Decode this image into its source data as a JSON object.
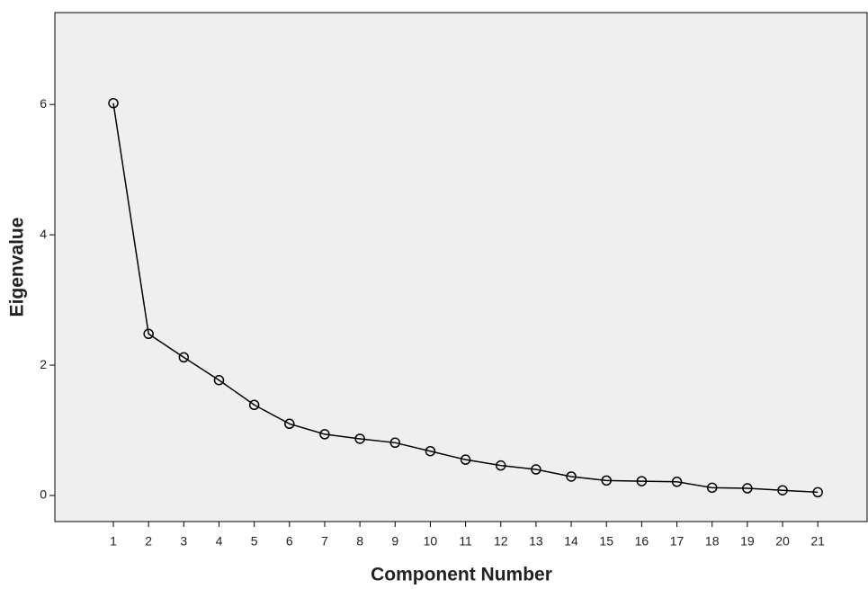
{
  "chart_data": {
    "type": "line",
    "x_label": "Component Number",
    "y_label": "Eigenvalue",
    "x": [
      1,
      2,
      3,
      4,
      5,
      6,
      7,
      8,
      9,
      10,
      11,
      12,
      13,
      14,
      15,
      16,
      17,
      18,
      19,
      20,
      21
    ],
    "values": [
      6.02,
      2.48,
      2.12,
      1.77,
      1.39,
      1.1,
      0.94,
      0.87,
      0.81,
      0.68,
      0.55,
      0.46,
      0.4,
      0.29,
      0.23,
      0.22,
      0.21,
      0.12,
      0.11,
      0.08,
      0.05
    ],
    "color": "#000000",
    "xlim": [
      -0.66,
      22.4
    ],
    "xticks": [
      1,
      2,
      3,
      4,
      5,
      6,
      7,
      8,
      9,
      10,
      11,
      12,
      13,
      14,
      15,
      16,
      17,
      18,
      19,
      20,
      21
    ],
    "ylim": [
      -0.4,
      7.41
    ],
    "yticks": [
      0,
      2,
      4,
      6
    ],
    "grid": false
  }
}
